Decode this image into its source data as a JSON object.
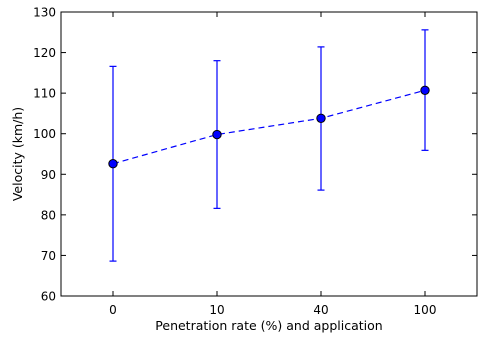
{
  "chart_data": {
    "type": "line",
    "categories": [
      "0",
      "10",
      "40",
      "100"
    ],
    "series": [
      {
        "values": [
          92.6,
          99.8,
          103.8,
          110.7
        ],
        "err_low": [
          68.6,
          81.6,
          86.1,
          95.9
        ],
        "err_high": [
          116.6,
          118.0,
          121.4,
          125.6
        ]
      }
    ],
    "xlabel": "Penetration rate (%) and application",
    "ylabel": "Velocity (km/h)",
    "ylim": [
      60,
      130
    ],
    "yticks": [
      60,
      70,
      80,
      90,
      100,
      110,
      120,
      130
    ],
    "grid": false,
    "line_style": "dashed",
    "marker": "circle",
    "colors": {
      "series": "#0000ff",
      "axis": "#000000",
      "background": "#ffffff"
    }
  }
}
